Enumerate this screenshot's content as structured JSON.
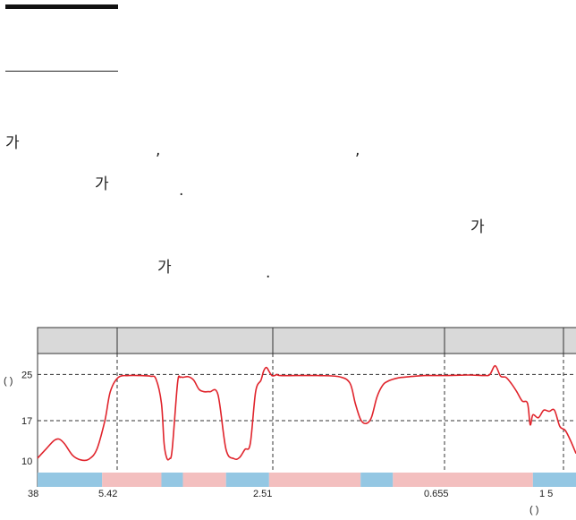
{
  "text": {
    "l1a": "가",
    "l1b": ",",
    "l1c": ",",
    "l2a": "가",
    "l2b": ".",
    "l3a": "가",
    "l4a": "가",
    "l4b": "."
  },
  "chart_data": {
    "type": "line",
    "title": "",
    "xlabel": "",
    "ylabel": "( )",
    "x_ticks": [
      "38",
      "5.42",
      "2.51",
      "0.655",
      "1   5",
      "(      )"
    ],
    "y_ticks": [
      25,
      17,
      10
    ],
    "ylim": [
      8,
      28
    ],
    "grid": "dashed",
    "header_row_cells": 5,
    "bands": [
      {
        "from": 0,
        "to": 12,
        "color": "#94c7e3"
      },
      {
        "from": 12,
        "to": 23,
        "color": "#f3bfbf"
      },
      {
        "from": 23,
        "to": 27,
        "color": "#94c7e3"
      },
      {
        "from": 27,
        "to": 35,
        "color": "#f3bfbf"
      },
      {
        "from": 35,
        "to": 43,
        "color": "#94c7e3"
      },
      {
        "from": 43,
        "to": 60,
        "color": "#f3bfbf"
      },
      {
        "from": 60,
        "to": 66,
        "color": "#94c7e3"
      },
      {
        "from": 66,
        "to": 92,
        "color": "#f3bfbf"
      },
      {
        "from": 92,
        "to": 100,
        "color": "#94c7e3"
      }
    ],
    "series": [
      {
        "color": "#e0242c",
        "x": [
          0,
          1.5,
          3,
          4,
          5,
          6.5,
          8,
          9.5,
          11,
          12.5,
          13.5,
          15,
          17,
          19,
          21,
          22,
          23,
          23.5,
          24,
          24.5,
          25,
          26,
          26.5,
          27,
          28,
          29,
          30,
          31,
          32,
          33.5,
          35,
          36.5,
          37.5,
          38.5,
          39.5,
          40.5,
          41.5,
          42,
          42.5,
          43,
          43.5,
          44,
          44.5,
          45,
          48,
          52,
          56,
          58,
          59,
          60,
          61,
          62,
          63,
          64,
          65,
          67,
          69,
          72,
          76,
          80,
          83,
          84,
          85,
          86,
          87,
          88,
          89,
          90,
          91,
          91.5,
          92,
          93,
          94,
          95,
          96,
          97,
          98,
          99,
          100
        ],
        "y": [
          10.5,
          12,
          13.5,
          13.8,
          13,
          11,
          10.2,
          10.3,
          12,
          17,
          22,
          24.5,
          24.8,
          24.8,
          24.7,
          24.2,
          20,
          13,
          10.5,
          10.4,
          12,
          23.5,
          24.5,
          24.5,
          24.6,
          24,
          22.4,
          22,
          22,
          21.5,
          12,
          10.4,
          10.6,
          12,
          13,
          22,
          24,
          25.6,
          26.2,
          25.5,
          24.8,
          24.8,
          25,
          24.8,
          24.8,
          24.8,
          24.6,
          23.5,
          20,
          17.2,
          16.5,
          17.5,
          21,
          23,
          23.8,
          24.4,
          24.6,
          24.8,
          24.8,
          24.9,
          24.8,
          25,
          26.5,
          24.7,
          24.5,
          23.4,
          22,
          20.4,
          20,
          16.3,
          18,
          17.5,
          18.8,
          18.6,
          18.8,
          16,
          15.3,
          13.5,
          11.3
        ]
      }
    ]
  }
}
